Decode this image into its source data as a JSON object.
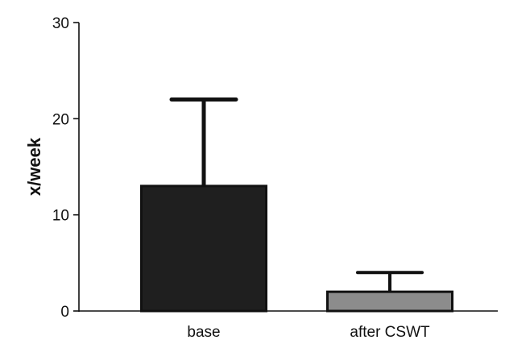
{
  "chart_data": {
    "type": "bar",
    "categories": [
      "base",
      "after CSWT"
    ],
    "values": [
      13,
      2
    ],
    "error_upper": [
      22,
      4
    ],
    "ylabel": "x/week",
    "xlabel": "",
    "title": "",
    "ylim": [
      0,
      30
    ],
    "yticks": [
      "0",
      "10",
      "20",
      "30"
    ],
    "colors": [
      "#1f1f1f",
      "#8c8c8c"
    ],
    "grid": false
  }
}
